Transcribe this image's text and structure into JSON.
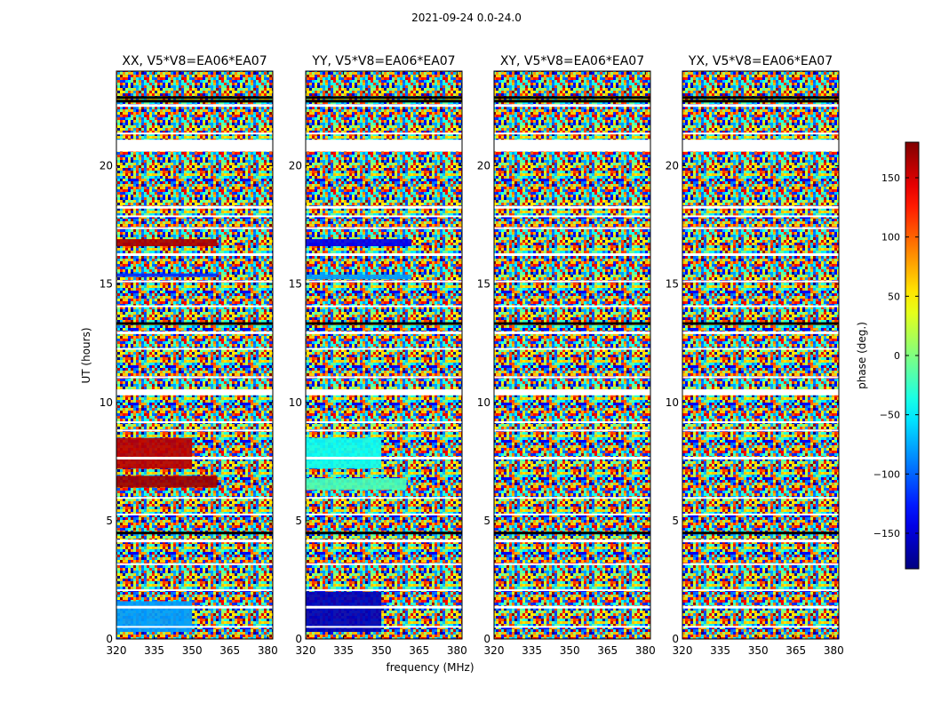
{
  "suptitle": "2021-09-24 0.0-24.0",
  "chart_data": {
    "type": "heatmap",
    "xlabel": "frequency (MHz)",
    "ylabel": "UT (hours)",
    "xlim": [
      320,
      382
    ],
    "ylim": [
      0,
      24
    ],
    "xticks": [
      320,
      335,
      350,
      365,
      380
    ],
    "yticks": [
      0,
      5,
      10,
      15,
      20
    ],
    "colorbar": {
      "label": "phase (deg.)",
      "range": [
        -180,
        180
      ],
      "ticks": [
        150,
        100,
        50,
        0,
        -50,
        -100,
        -150
      ],
      "tick_labels": [
        "150",
        "100",
        "50",
        "0",
        "−50",
        "−100",
        "−150"
      ],
      "colormap": "jet"
    },
    "panels": [
      {
        "title": "XX, V5*V8=EA06*EA07",
        "coherent_bands": [
          {
            "t0": 16.6,
            "t1": 16.9,
            "phase": 165,
            "f1": 360
          },
          {
            "t0": 15.3,
            "t1": 15.45,
            "phase": -120,
            "f1": 360
          },
          {
            "t0": 7.2,
            "t1": 8.5,
            "phase": 160,
            "f1": 350
          },
          {
            "t0": 6.4,
            "t1": 6.9,
            "phase": 170,
            "f1": 360
          },
          {
            "t0": 0.3,
            "t1": 1.6,
            "phase": -80,
            "f1": 350
          }
        ]
      },
      {
        "title": "YY, V5*V8=EA06*EA07",
        "coherent_bands": [
          {
            "t0": 16.6,
            "t1": 16.9,
            "phase": -140,
            "f1": 362
          },
          {
            "t0": 15.2,
            "t1": 15.4,
            "phase": -80,
            "f1": 362
          },
          {
            "t0": 7.2,
            "t1": 8.5,
            "phase": -40,
            "f1": 350
          },
          {
            "t0": 6.3,
            "t1": 6.8,
            "phase": -20,
            "f1": 360
          },
          {
            "t0": 0.3,
            "t1": 2.0,
            "phase": -160,
            "f1": 350
          }
        ]
      },
      {
        "title": "XY, V5*V8=EA06*EA07",
        "coherent_bands": []
      },
      {
        "title": "YX, V5*V8=EA06*EA07",
        "coherent_bands": []
      }
    ],
    "flagged_rows_hours": [
      22.6,
      21.4,
      20.9,
      18.3,
      17.9,
      17.4,
      16.3,
      15.15,
      14.1,
      13.0,
      12.3,
      11.1,
      10.55,
      9.2,
      8.85,
      7.7,
      6.0,
      5.3,
      4.2,
      3.2,
      2.1,
      1.4,
      0.55
    ],
    "black_rows_hours": [
      22.9,
      22.75,
      13.35,
      4.5
    ]
  }
}
